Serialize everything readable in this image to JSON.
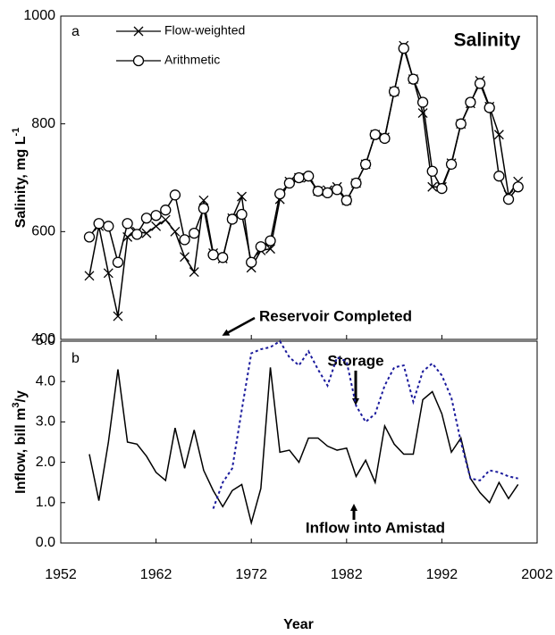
{
  "chart_data": [
    {
      "type": "line",
      "panel_label": "a",
      "title": "Salinity",
      "y_label": "Salinity, mg L",
      "y_label_sup": "-1",
      "annotation": "Reservoir Completed",
      "x": [
        1955,
        1956,
        1957,
        1958,
        1959,
        1960,
        1961,
        1962,
        1963,
        1964,
        1965,
        1966,
        1967,
        1968,
        1969,
        1970,
        1971,
        1972,
        1973,
        1974,
        1975,
        1976,
        1977,
        1978,
        1979,
        1980,
        1981,
        1982,
        1983,
        1984,
        1985,
        1986,
        1987,
        1988,
        1989,
        1990,
        1991,
        1992,
        1993,
        1994,
        1995,
        1996,
        1997,
        1998,
        1999,
        2000
      ],
      "series": [
        {
          "name": "Flow-weighted",
          "color": "#000000",
          "marker": "x",
          "values": [
            518,
            610,
            523,
            443,
            590,
            600,
            597,
            610,
            622,
            600,
            553,
            525,
            658,
            560,
            550,
            625,
            665,
            533,
            565,
            568,
            660,
            693,
            700,
            700,
            675,
            677,
            683,
            658,
            690,
            725,
            780,
            775,
            860,
            945,
            883,
            820,
            683,
            683,
            727,
            800,
            838,
            880,
            832,
            780,
            668,
            693
          ]
        },
        {
          "name": "Arithmetic",
          "color": "#000000",
          "marker": "circle",
          "values": [
            590,
            615,
            610,
            543,
            615,
            595,
            625,
            630,
            640,
            668,
            585,
            597,
            643,
            557,
            552,
            623,
            632,
            543,
            572,
            583,
            670,
            690,
            700,
            703,
            675,
            672,
            678,
            658,
            690,
            725,
            780,
            773,
            860,
            940,
            883,
            840,
            712,
            680,
            725,
            800,
            840,
            875,
            830,
            703,
            660,
            683
          ]
        }
      ],
      "xlim": [
        1952,
        2002
      ],
      "ylim": [
        400,
        1000
      ],
      "yticks": [
        400,
        600,
        800,
        1000
      ],
      "legend": "upper left"
    },
    {
      "type": "line",
      "panel_label": "b",
      "y_label": "Inflow, bill m",
      "y_label_sup": "3",
      "y_label_suffix": "/y",
      "x_label": "Year",
      "x": [
        1955,
        1956,
        1957,
        1958,
        1959,
        1960,
        1961,
        1962,
        1963,
        1964,
        1965,
        1966,
        1967,
        1968,
        1969,
        1970,
        1971,
        1972,
        1973,
        1974,
        1975,
        1976,
        1977,
        1978,
        1979,
        1980,
        1981,
        1982,
        1983,
        1984,
        1985,
        1986,
        1987,
        1988,
        1989,
        1990,
        1991,
        1992,
        1993,
        1994,
        1995,
        1996,
        1997,
        1998,
        1999,
        2000
      ],
      "series": [
        {
          "name": "Inflow into Amistad",
          "color": "#000000",
          "dash": "solid",
          "values": [
            2.2,
            1.05,
            2.5,
            4.3,
            2.5,
            2.45,
            2.15,
            1.75,
            1.55,
            2.85,
            1.85,
            2.8,
            1.8,
            1.3,
            0.9,
            1.3,
            1.45,
            0.5,
            1.35,
            4.35,
            2.25,
            2.3,
            2.0,
            2.6,
            2.6,
            2.4,
            2.3,
            2.35,
            1.65,
            2.05,
            1.5,
            2.9,
            2.45,
            2.2,
            2.2,
            3.55,
            3.75,
            3.2,
            2.25,
            2.6,
            1.6,
            1.25,
            1.0,
            1.5,
            1.1,
            1.45
          ]
        },
        {
          "name": "Storage",
          "color": "#1a1a9c",
          "dash": "dotted",
          "values": [
            null,
            null,
            null,
            null,
            null,
            null,
            null,
            null,
            null,
            null,
            null,
            null,
            null,
            0.85,
            1.5,
            1.85,
            3.3,
            4.7,
            4.8,
            4.85,
            5.0,
            4.6,
            4.4,
            4.75,
            4.3,
            3.9,
            4.6,
            4.5,
            3.4,
            3.0,
            3.2,
            3.9,
            4.35,
            4.4,
            3.5,
            4.25,
            4.45,
            4.15,
            3.6,
            2.5,
            1.6,
            1.55,
            1.8,
            1.75,
            1.65,
            1.6
          ]
        }
      ],
      "xlim": [
        1952,
        2002
      ],
      "xticks": [
        1952,
        1962,
        1972,
        1982,
        1992,
        2002
      ],
      "ylim": [
        0,
        5
      ],
      "yticks": [
        {
          "value": 0,
          "label": "0.0"
        },
        {
          "value": 1,
          "label": "1.0"
        },
        {
          "value": 2,
          "label": "2.0"
        },
        {
          "value": 3,
          "label": "3.0"
        },
        {
          "value": 4,
          "label": "4.0"
        },
        {
          "value": 5,
          "label": "5.0"
        }
      ]
    }
  ]
}
